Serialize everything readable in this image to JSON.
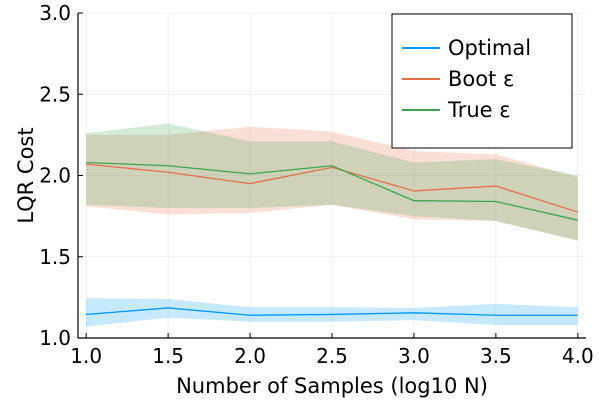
{
  "chart_data": {
    "type": "line",
    "title": "",
    "xlabel": "Number of Samples (log10 N)",
    "ylabel": "LQR Cost",
    "xlim": [
      0.95,
      4.05
    ],
    "ylim": [
      1.0,
      3.0
    ],
    "x": [
      1.0,
      1.5,
      2.0,
      2.5,
      3.0,
      3.5,
      4.0
    ],
    "xticks": [
      "1.0",
      "1.5",
      "2.0",
      "2.5",
      "3.0",
      "3.5",
      "4.0"
    ],
    "yticks": [
      "1.0",
      "1.5",
      "2.0",
      "2.5",
      "3.0"
    ],
    "grid": true,
    "legend_position": "top-right",
    "series": [
      {
        "name": "Optimal",
        "color": "#009af9",
        "values": [
          1.145,
          1.185,
          1.14,
          1.145,
          1.155,
          1.14,
          1.14
        ],
        "band_upper": [
          1.245,
          1.24,
          1.19,
          1.19,
          1.185,
          1.21,
          1.19
        ],
        "band_lower": [
          1.07,
          1.125,
          1.1,
          1.1,
          1.11,
          1.08,
          1.08
        ]
      },
      {
        "name": "Boot ε",
        "color": "#e26f46",
        "values": [
          2.07,
          2.02,
          1.95,
          2.05,
          1.905,
          1.935,
          1.775
        ],
        "band_upper": [
          2.25,
          2.25,
          2.3,
          2.27,
          2.15,
          2.13,
          1.99
        ],
        "band_lower": [
          1.81,
          1.76,
          1.77,
          1.82,
          1.73,
          1.72,
          1.6
        ]
      },
      {
        "name": "True ε",
        "color": "#3da44d",
        "values": [
          2.08,
          2.06,
          2.01,
          2.06,
          1.845,
          1.84,
          1.725
        ],
        "band_upper": [
          2.26,
          2.32,
          2.21,
          2.21,
          2.08,
          2.1,
          2.0
        ],
        "band_lower": [
          1.82,
          1.8,
          1.8,
          1.82,
          1.75,
          1.72,
          1.6
        ]
      }
    ]
  }
}
